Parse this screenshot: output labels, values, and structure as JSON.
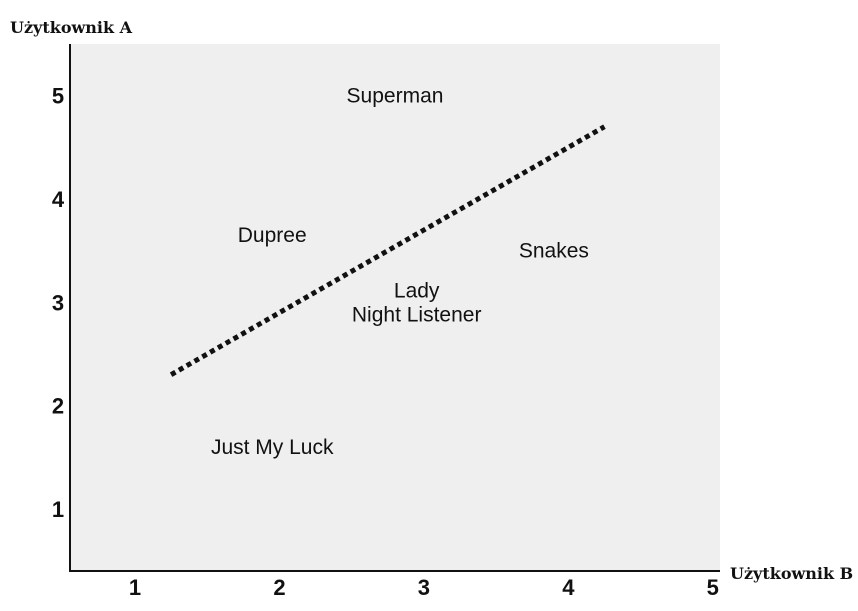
{
  "chart_data": {
    "type": "scatter",
    "xlabel": "Użytkownik B",
    "ylabel": "Użytkownik A",
    "xlim": [
      0.55,
      5.05
    ],
    "ylim": [
      0.4,
      5.5
    ],
    "x_ticks": [
      "1",
      "2",
      "3",
      "4",
      "5"
    ],
    "y_ticks": [
      "1",
      "2",
      "3",
      "4",
      "5"
    ],
    "grid": false,
    "background": "#efefef",
    "points": [
      {
        "lines": [
          "Superman"
        ],
        "x": 2.8,
        "y": 5.0
      },
      {
        "lines": [
          "Dupree"
        ],
        "x": 1.95,
        "y": 3.65
      },
      {
        "lines": [
          "Snakes"
        ],
        "x": 3.9,
        "y": 3.5
      },
      {
        "lines": [
          "Lady",
          "Night Listener"
        ],
        "x": 2.95,
        "y": 3.0
      },
      {
        "lines": [
          "Just My Luck"
        ],
        "x": 1.95,
        "y": 1.6
      }
    ],
    "trend_line": {
      "style": "dotted",
      "x": [
        1.25,
        4.25
      ],
      "y": [
        2.3,
        4.7
      ]
    }
  }
}
